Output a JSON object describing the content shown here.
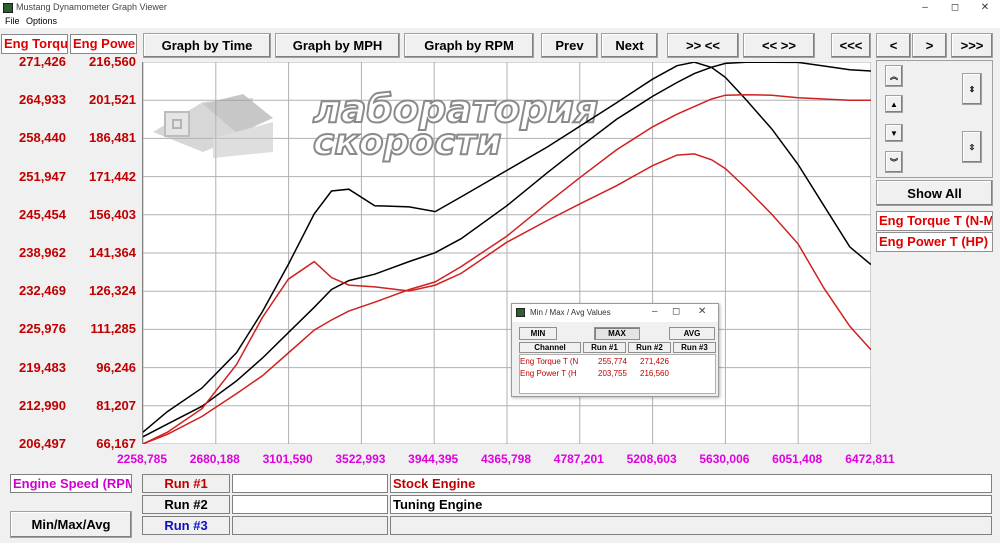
{
  "window": {
    "title": "Mustang Dynamometer Graph Viewer",
    "controls": [
      "–",
      "◻",
      "✕"
    ]
  },
  "menu": [
    "File",
    "Options"
  ],
  "left_axis": {
    "torque_header": "Eng Torque T",
    "power_header": "Eng Power T",
    "torque_values": [
      "271,426",
      "264,933",
      "258,440",
      "251,947",
      "245,454",
      "238,962",
      "232,469",
      "225,976",
      "219,483",
      "212,990",
      "206,497"
    ],
    "power_values": [
      "216,560",
      "201,521",
      "186,481",
      "171,442",
      "156,403",
      "141,364",
      "126,324",
      "111,285",
      "96,246",
      "81,207",
      "66,167"
    ]
  },
  "toolbar": {
    "graph_time": "Graph by Time",
    "graph_mph": "Graph by MPH",
    "graph_rpm": "Graph by RPM",
    "prev": "Prev",
    "next": "Next",
    "zoom_in": ">> <<",
    "zoom_out": "<< >>",
    "far_left": "<<<",
    "left": "<",
    "right": ">",
    "far_right": ">>>"
  },
  "right_panel": {
    "show_all": "Show All",
    "channels": [
      "Eng Torque T (N-M)",
      "Eng Power T (HP)"
    ]
  },
  "x_axis": {
    "labels": [
      "2258,785",
      "2680,188",
      "3101,590",
      "3522,993",
      "3944,395",
      "4365,798",
      "4787,201",
      "5208,603",
      "5630,006",
      "6051,408",
      "6472,811"
    ]
  },
  "watermark": {
    "line1": "лаборатория",
    "line2": "скорости"
  },
  "bottom": {
    "channel_label": "Engine Speed (RPM)",
    "minmax_button": "Min/Max/Avg",
    "runs": [
      {
        "label": "Run #1",
        "name": "Stock Engine",
        "color": "#c00000"
      },
      {
        "label": "Run #2",
        "name": "Tuning Engine",
        "color": "#000000"
      },
      {
        "label": "Run #3",
        "name": "",
        "color": "#1010c0"
      }
    ]
  },
  "dialog": {
    "title": "Min / Max / Avg Values",
    "buttons": [
      "MIN",
      "MAX",
      "AVG"
    ],
    "headers": [
      "Channel",
      "Run #1",
      "Run #2",
      "Run #3"
    ],
    "rows": [
      {
        "channel": "Eng Torque T (N",
        "run1": "255,774",
        "run2": "271,426",
        "run3": ""
      },
      {
        "channel": "Eng Power T (H",
        "run1": "203,755",
        "run2": "216,560",
        "run3": ""
      }
    ]
  },
  "chart_data": {
    "type": "line",
    "x": [
      2258,
      2400,
      2600,
      2800,
      2950,
      3100,
      3250,
      3350,
      3450,
      3600,
      3800,
      3950,
      4100,
      4365,
      4600,
      4787,
      5000,
      5208,
      5350,
      5450,
      5550,
      5630,
      5750,
      5900,
      6051,
      6200,
      6350,
      6472
    ],
    "series": [
      {
        "name": "Run #2 Eng Torque T",
        "color": "#000000",
        "values": [
          208.5,
          212,
          216,
          222,
          229,
          237,
          245.6,
          249.5,
          249.8,
          247.0,
          246.8,
          246.0,
          248.5,
          253,
          257,
          260.5,
          264.5,
          268.5,
          270.8,
          271.4,
          270.5,
          268.8,
          265,
          260,
          254,
          247,
          240,
          237
        ]
      },
      {
        "name": "Run #2 Eng Power T",
        "color": "#000000",
        "values": [
          69,
          74,
          81,
          91,
          100,
          110,
          120,
          127,
          130.5,
          133,
          138,
          141.5,
          147,
          160,
          173,
          183,
          194,
          203,
          208.5,
          212,
          214.5,
          216,
          216.5,
          216.5,
          216.4,
          215,
          213.5,
          213
        ]
      },
      {
        "name": "Run #1 Eng Torque T",
        "color": "#d02020",
        "values": [
          206.5,
          208.5,
          212.5,
          220,
          228,
          234.5,
          237.5,
          234.8,
          233.5,
          233.2,
          232.5,
          233.5,
          235.5,
          240.8,
          244.5,
          247.3,
          250.4,
          253.8,
          255.6,
          255.8,
          254.8,
          253.3,
          250,
          245.5,
          240.5,
          233,
          226.5,
          222.5
        ]
      },
      {
        "name": "Run #1 Eng Power T",
        "color": "#d02020",
        "values": [
          66.2,
          70,
          77,
          86,
          93,
          102,
          111,
          115,
          118.5,
          122,
          127,
          130,
          136,
          148,
          161,
          171,
          182,
          191,
          196,
          199,
          202,
          203.5,
          203.7,
          203.5,
          202.5,
          202,
          201.5,
          201.5
        ]
      }
    ],
    "x_range": [
      2258.785,
      6472.811
    ],
    "y_range_torque": [
      206.497,
      271.426
    ],
    "y_range_power": [
      66.167,
      216.56
    ],
    "grid": true
  }
}
